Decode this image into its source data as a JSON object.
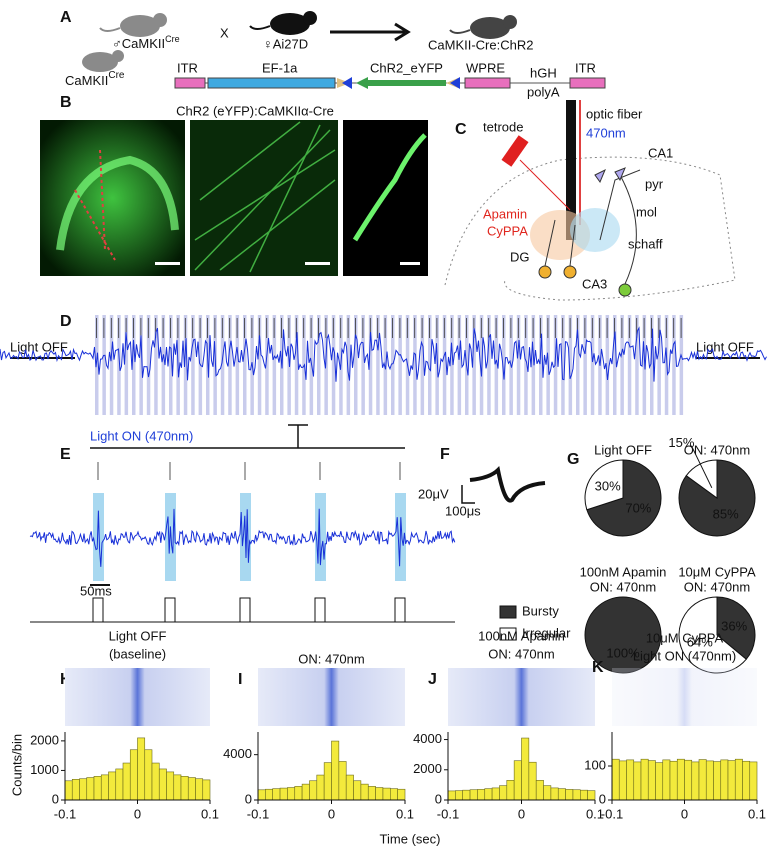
{
  "panel_a": {
    "letter": "A",
    "male": "♂CaMKII",
    "male_sup": "Cre",
    "cross": "X",
    "female": "♀Ai27D",
    "result": "CaMKII-Cre:ChR2",
    "mouse": "CaMKII",
    "mouse_sup": "Cre",
    "itr_left": "ITR",
    "promoter": "EF-1a",
    "gene": "ChR2_eYFP",
    "wpre": "WPRE",
    "hgh": "hGH",
    "polya": "polyA",
    "itr_right": "ITR"
  },
  "panel_b": {
    "letter": "B",
    "title": "ChR2 (eYFP):CaMKIIα-Cre"
  },
  "panel_c": {
    "letter": "C",
    "tetrode": "tetrode",
    "fiber": "optic fiber",
    "wavelength": "470nm",
    "ca1": "CA1",
    "pyr": "pyr",
    "mol": "mol",
    "schaff": "schaff",
    "apamin": "Apamin",
    "cyppa": "CyPPA",
    "dg": "DG",
    "ca3": "CA3"
  },
  "panel_d": {
    "letter": "D",
    "light_off_left": "Light OFF",
    "light_off_right": "Light OFF"
  },
  "panel_e": {
    "letter": "E",
    "light_on": "Light ON (470nm)",
    "scale": "50ms"
  },
  "panel_f": {
    "letter": "F",
    "scale_y": "20μV",
    "scale_x": "100μs"
  },
  "panel_g": {
    "letter": "G",
    "legend": [
      "Bursty",
      "Irregular"
    ],
    "colors": [
      "#333333",
      "#ffffff"
    ],
    "pies": [
      {
        "title": [
          "Light OFF"
        ],
        "title_colors": [
          "#111111"
        ],
        "values": [
          70,
          30
        ],
        "value_labels": [
          "70%",
          "30%"
        ]
      },
      {
        "title": [
          "ON: 470nm"
        ],
        "title_colors": [
          "#1f3fd8"
        ],
        "values": [
          85,
          15
        ],
        "value_labels": [
          "85%",
          "15%"
        ]
      },
      {
        "title": [
          "100nM Apamin",
          "ON: 470nm"
        ],
        "title_colors": [
          "#111111",
          "#1f3fd8"
        ],
        "values": [
          100
        ],
        "value_labels": [
          "100%"
        ]
      },
      {
        "title": [
          "10μM CyPPA",
          "ON: 470nm"
        ],
        "title_colors": [
          "#111111",
          "#1f3fd8"
        ],
        "values": [
          36,
          64
        ],
        "value_labels": [
          "36%",
          "64%"
        ]
      }
    ]
  },
  "histograms": {
    "y_label": "Counts/bin",
    "x_label": "Time (sec)",
    "color": "#f3ea3c",
    "bins": [
      -0.1,
      -0.09,
      -0.08,
      -0.07,
      -0.06,
      -0.05,
      -0.04,
      -0.03,
      -0.02,
      -0.01,
      0,
      0.01,
      0.02,
      0.03,
      0.04,
      0.05,
      0.06,
      0.07,
      0.08,
      0.09,
      0.1
    ],
    "xlim": [
      -0.1,
      0.1
    ],
    "xticks": [
      -0.1,
      0,
      0.1
    ],
    "panels": [
      {
        "letter": "H",
        "title": [
          "Light OFF",
          "(baseline)"
        ],
        "title_colors": [
          "#111111",
          "#111111"
        ],
        "ylim": [
          0,
          2300
        ],
        "yticks": [
          0,
          1000,
          2000
        ],
        "values": [
          650,
          700,
          720,
          760,
          800,
          850,
          950,
          1050,
          1250,
          1700,
          2100,
          1700,
          1250,
          1050,
          950,
          850,
          800,
          760,
          720,
          680
        ]
      },
      {
        "letter": "I",
        "title": [
          "ON: 470nm"
        ],
        "title_colors": [
          "#1f3fd8"
        ],
        "ylim": [
          0,
          6000
        ],
        "yticks": [
          0,
          4000
        ],
        "values": [
          900,
          950,
          1000,
          1050,
          1100,
          1200,
          1400,
          1700,
          2200,
          3300,
          5200,
          3400,
          2200,
          1700,
          1400,
          1200,
          1100,
          1050,
          1000,
          950
        ]
      },
      {
        "letter": "J",
        "title": [
          "100nM Apamin",
          "ON: 470nm"
        ],
        "title_colors": [
          "#111111",
          "#1f3fd8"
        ],
        "ylim": [
          0,
          4500
        ],
        "yticks": [
          0,
          2000,
          4000
        ],
        "values": [
          600,
          620,
          650,
          680,
          700,
          750,
          800,
          950,
          1300,
          2600,
          4100,
          2500,
          1300,
          950,
          800,
          750,
          700,
          680,
          650,
          620
        ]
      },
      {
        "letter": "K",
        "title": [
          "10μM CyPPA",
          "Light ON (470nm)"
        ],
        "title_colors": [
          "#111111",
          "#1f3fd8"
        ],
        "ylim": [
          0,
          200
        ],
        "yticks": [
          0,
          100
        ],
        "values": [
          120,
          115,
          118,
          112,
          120,
          116,
          110,
          118,
          114,
          120,
          117,
          112,
          119,
          115,
          113,
          118,
          116,
          120,
          114,
          112
        ]
      }
    ]
  }
}
